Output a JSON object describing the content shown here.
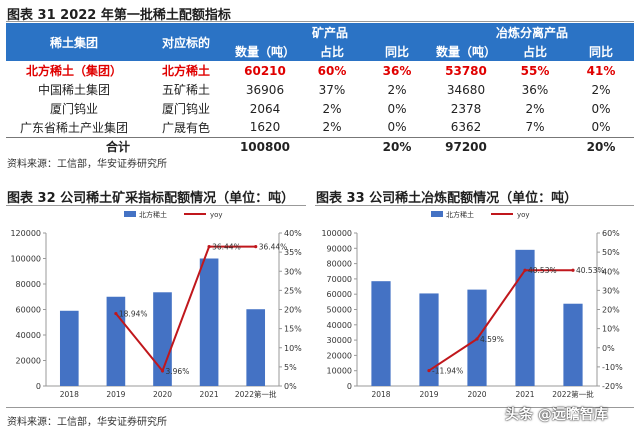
{
  "table_title": "图表 31 2022 年第一批稀土配额指标",
  "table": {
    "header_top": [
      "稀土集团",
      "对应标的",
      "矿产品",
      "冶炼分离产品"
    ],
    "header_sub": [
      "数量（吨）",
      "占比",
      "同比",
      "数量（吨）",
      "占比",
      "同比"
    ],
    "rows": [
      [
        "北方稀土（集团）",
        "北方稀土",
        "60210",
        "60%",
        "36%",
        "53780",
        "55%",
        "41%"
      ],
      [
        "中国稀土集团",
        "五矿稀土",
        "36906",
        "37%",
        "2%",
        "34680",
        "36%",
        "2%"
      ],
      [
        "厦门钨业",
        "厦门钨业",
        "2064",
        "2%",
        "0%",
        "2378",
        "2%",
        "0%"
      ],
      [
        "广东省稀土产业集团",
        "广晟有色",
        "1620",
        "2%",
        "0%",
        "6362",
        "7%",
        "0%"
      ]
    ],
    "total_row": [
      "合计",
      "100800",
      "",
      "20%",
      "97200",
      "",
      "20%"
    ]
  },
  "source_1": "资料来源：工信部，华安证券研究所",
  "chart_32_title": "图表 32 公司稀土矿采指标配额情况（单位：吨）",
  "chart_33_title": "图表 33 公司稀土冶炼配额情况（单位：吨）",
  "source_2": "资料来源：工信部，华安证券研究所",
  "watermark": "头条 @远瞻智库",
  "colors": {
    "header_blue": "#2b73c5",
    "bar_blue": "#4472c4",
    "line_red": "#c0171c",
    "highlight_red": "#e00000"
  },
  "chart_data": [
    {
      "type": "bar",
      "categories": [
        "2018",
        "2019",
        "2020",
        "2021",
        "2022第一批"
      ],
      "series": [
        {
          "name": "北方稀土",
          "type": "bar",
          "axis": "left",
          "values": [
            59000,
            70000,
            73500,
            100000,
            60210
          ]
        },
        {
          "name": "yoy",
          "type": "line",
          "axis": "right",
          "values": [
            null,
            18.94,
            3.96,
            36.44,
            36.44
          ],
          "labels": [
            "",
            "18.94%",
            "3.96%",
            "36.44%",
            "36.44%"
          ]
        }
      ],
      "ylim": [
        0,
        120000
      ],
      "yticks": [
        "0",
        "20000",
        "40000",
        "60000",
        "80000",
        "100000",
        "120000"
      ],
      "y2lim": [
        0,
        40
      ],
      "y2ticks": [
        "0%",
        "5%",
        "10%",
        "15%",
        "20%",
        "25%",
        "30%",
        "35%",
        "40%"
      ],
      "legend": "top"
    },
    {
      "type": "bar",
      "categories": [
        "2018",
        "2019",
        "2020",
        "2021",
        "2022第一批"
      ],
      "series": [
        {
          "name": "北方稀土",
          "type": "bar",
          "axis": "left",
          "values": [
            68500,
            60500,
            63000,
            89000,
            53780
          ]
        },
        {
          "name": "yoy",
          "type": "line",
          "axis": "right",
          "values": [
            null,
            -11.94,
            4.59,
            40.53,
            40.53
          ],
          "labels": [
            "",
            "-11.94%",
            "4.59%",
            "40.53%",
            "40.53%"
          ]
        }
      ],
      "ylim": [
        0,
        100000
      ],
      "yticks": [
        "0",
        "10000",
        "20000",
        "30000",
        "40000",
        "50000",
        "60000",
        "70000",
        "80000",
        "90000",
        "100000"
      ],
      "y2lim": [
        -20,
        60
      ],
      "y2ticks": [
        "-20%",
        "-10%",
        "0%",
        "10%",
        "20%",
        "30%",
        "40%",
        "50%",
        "60%"
      ],
      "legend": "top"
    }
  ]
}
